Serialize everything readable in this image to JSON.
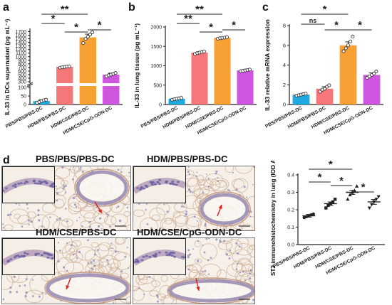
{
  "colors": {
    "blue": "#1ea9e1",
    "pink": "#f6777a",
    "orange": "#f7a033",
    "purple": "#cf56de",
    "tissue": "#efe6dc",
    "nuclei": "#8a84b8",
    "arrow": "#e41b1b"
  },
  "panels": {
    "a": {
      "letter": "a"
    },
    "b": {
      "letter": "b"
    },
    "c": {
      "letter": "c"
    },
    "d": {
      "letter": "d"
    }
  },
  "micrographs": [
    {
      "title": "PBS/PBS/PBS-DC"
    },
    {
      "title": "HDM/PBS/PBS-DC"
    },
    {
      "title": "HDM/CSE/PBS-DC"
    },
    {
      "title": "HDM/CSE/CpG-ODN-DC"
    }
  ],
  "chart_data": [
    {
      "panel": "a",
      "type": "bar",
      "categories": [
        "PBS/PBS/PBS-DC",
        "HDM/PBS/PBS-DC",
        "HDM/CSE/PBS-DC",
        "HDM/CSE/CpG-ODN-DC"
      ],
      "values": [
        20,
        720,
        1540,
        500
      ],
      "errors": [
        8,
        15,
        90,
        40
      ],
      "points": [
        [
          10,
          15,
          20,
          25,
          28
        ],
        [
          695,
          705,
          715,
          725,
          730
        ],
        [
          1380,
          1500,
          1560,
          1620,
          1680
        ],
        [
          450,
          480,
          500,
          520,
          545
        ]
      ],
      "ylabel": "IL-33 in DCs supernatant (pg mL⁻¹)",
      "yticks": [
        0,
        50,
        100,
        300,
        400,
        500,
        600,
        700,
        800,
        900,
        1000,
        1100,
        1200,
        1300,
        1400,
        1500,
        1600,
        1700
      ],
      "axis_break": [
        100,
        300
      ],
      "ylim": [
        0,
        1750
      ],
      "significance": [
        {
          "from": 0,
          "to": 1,
          "label": "*"
        },
        {
          "from": 1,
          "to": 2,
          "label": "*"
        },
        {
          "from": 2,
          "to": 3,
          "label": "*"
        },
        {
          "from": 0,
          "to": 2,
          "label": "**"
        }
      ]
    },
    {
      "panel": "b",
      "type": "bar",
      "categories": [
        "PBS/PBS/PBS-DC",
        "HDM/PBS/PBS-DC",
        "HDM/CSE/PBS-DC",
        "HDM/CSE/CpG-ODN-DC"
      ],
      "values": [
        150,
        1340,
        1720,
        880
      ],
      "errors": [
        15,
        20,
        12,
        15
      ],
      "points": [
        [
          125,
          140,
          150,
          160,
          172
        ],
        [
          1305,
          1325,
          1340,
          1355,
          1370
        ],
        [
          1700,
          1712,
          1720,
          1728,
          1738
        ],
        [
          860,
          872,
          880,
          890,
          902
        ]
      ],
      "ylabel": "IL-33 in lung tissue (pg mL⁻¹)",
      "yticks": [
        0,
        500,
        1000,
        1500,
        2000
      ],
      "ylim": [
        0,
        2000
      ],
      "significance": [
        {
          "from": 0,
          "to": 1,
          "label": "**"
        },
        {
          "from": 1,
          "to": 2,
          "label": "*"
        },
        {
          "from": 2,
          "to": 3,
          "label": "*"
        },
        {
          "from": 0,
          "to": 2,
          "label": "**"
        }
      ]
    },
    {
      "panel": "c",
      "type": "bar",
      "categories": [
        "PBS/PBS/PBS-DC",
        "HDM/PBS/PBS-DC",
        "HDM/CSE/PBS-DC",
        "HDM/CSE/CpG-ODN-DC"
      ],
      "values": [
        1.0,
        1.6,
        6.0,
        3.0
      ],
      "errors": [
        0.05,
        0.2,
        0.35,
        0.2
      ],
      "points": [
        [
          0.9,
          0.95,
          1.0,
          1.05,
          1.1
        ],
        [
          1.3,
          1.5,
          1.6,
          1.8,
          1.95
        ],
        [
          5.4,
          5.7,
          6.0,
          6.4,
          6.9
        ],
        [
          2.7,
          2.85,
          3.0,
          3.15,
          3.35
        ]
      ],
      "ylabel": "IL-33 relative mRNA expression",
      "yticks": [
        0,
        2,
        4,
        6,
        8
      ],
      "ylim": [
        0,
        8
      ],
      "significance": [
        {
          "from": 0,
          "to": 1,
          "label": "ns"
        },
        {
          "from": 1,
          "to": 2,
          "label": "*"
        },
        {
          "from": 2,
          "to": 3,
          "label": "*"
        },
        {
          "from": 0,
          "to": 2,
          "label": "*"
        }
      ]
    },
    {
      "panel": "d",
      "type": "scatter",
      "categories": [
        "PBS/PBS/PBS-DC",
        "HDM/PBS/PBS-DC",
        "HDM/CSE/PBS-DC",
        "HDM/CSE/CpG-ODN-DC"
      ],
      "values": [
        0.165,
        0.235,
        0.3,
        0.245
      ],
      "errors": [
        0.008,
        0.01,
        0.012,
        0.014
      ],
      "points": [
        [
          0.155,
          0.16,
          0.165,
          0.17,
          0.175
        ],
        [
          0.21,
          0.225,
          0.235,
          0.245,
          0.26
        ],
        [
          0.26,
          0.285,
          0.3,
          0.31,
          0.335
        ],
        [
          0.21,
          0.23,
          0.245,
          0.26,
          0.275
        ]
      ],
      "ylabel": "ST2 immunohistochemistry in lung (IOD Area⁻¹)",
      "yticks": [
        0.0,
        0.1,
        0.2,
        0.3,
        0.4
      ],
      "ylim": [
        0,
        0.4
      ],
      "significance": [
        {
          "from": 0,
          "to": 1,
          "label": "*"
        },
        {
          "from": 1,
          "to": 2,
          "label": "*"
        },
        {
          "from": 2,
          "to": 3,
          "label": "*"
        },
        {
          "from": 0,
          "to": 2,
          "label": "*"
        }
      ]
    }
  ]
}
